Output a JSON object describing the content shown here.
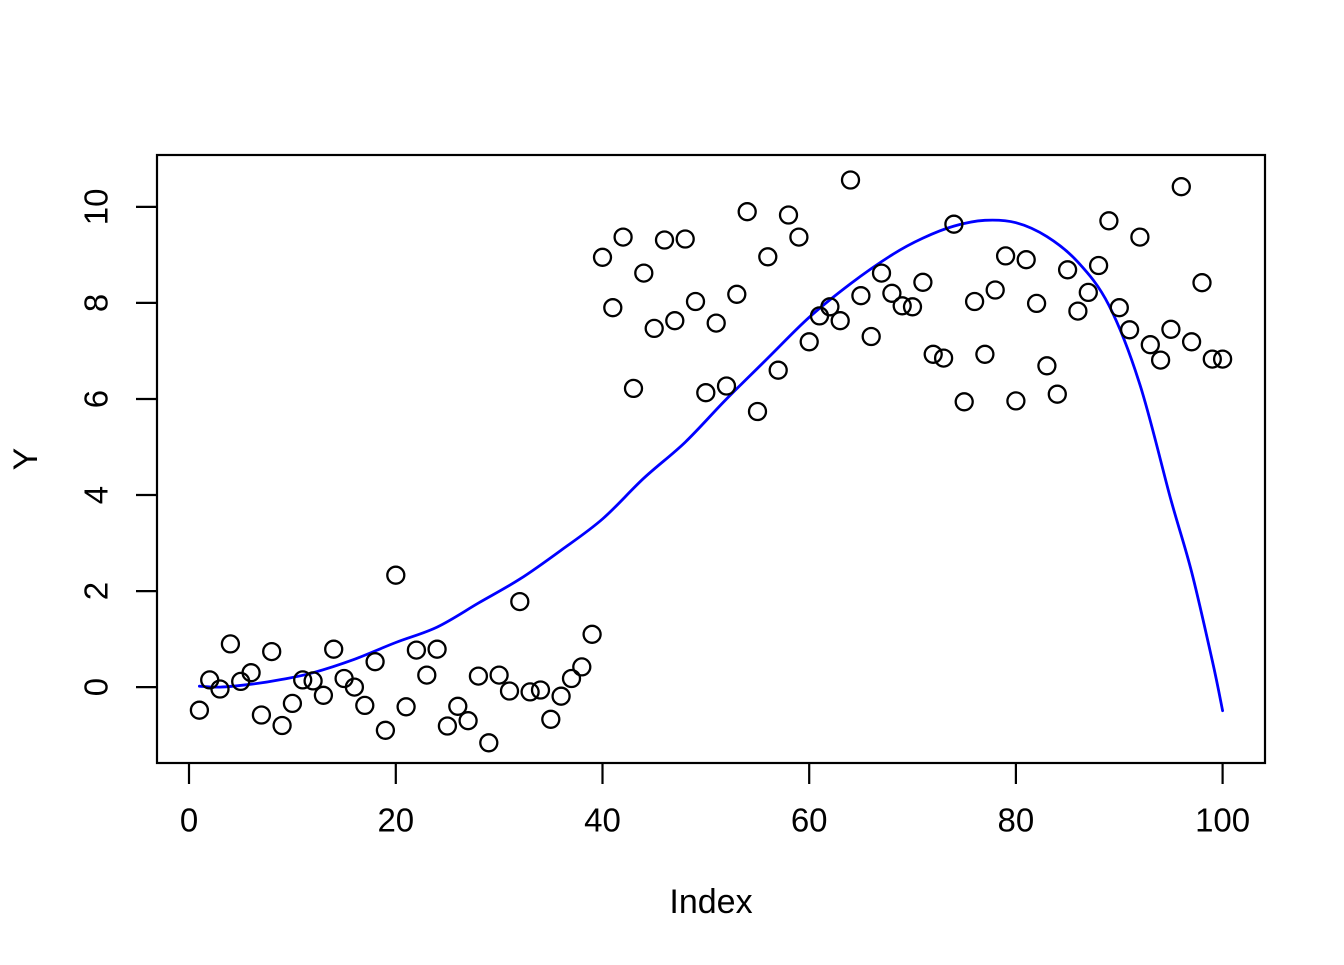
{
  "chart_data": {
    "type": "scatter",
    "title": "",
    "xlabel": "Index",
    "ylabel": "Y",
    "x_ticks": [
      0,
      20,
      40,
      60,
      80,
      100
    ],
    "y_ticks": [
      0,
      2,
      4,
      6,
      8,
      10
    ],
    "xlim": [
      -3.1,
      104.1
    ],
    "ylim": [
      -1.58,
      11.08
    ],
    "grid": false,
    "legend": null,
    "colors": {
      "points": "#000000",
      "curve": "#0000ff",
      "frame": "#000000"
    },
    "series": [
      {
        "name": "observations",
        "type": "scatter",
        "marker": "open-circle",
        "color": "#000000",
        "points": [
          [
            1,
            -0.48
          ],
          [
            2,
            0.15
          ],
          [
            3,
            -0.04
          ],
          [
            4,
            0.9
          ],
          [
            5,
            0.12
          ],
          [
            6,
            0.3
          ],
          [
            7,
            -0.58
          ],
          [
            8,
            0.74
          ],
          [
            9,
            -0.8
          ],
          [
            10,
            -0.34
          ],
          [
            11,
            0.15
          ],
          [
            12,
            0.13
          ],
          [
            13,
            -0.17
          ],
          [
            14,
            0.79
          ],
          [
            15,
            0.18
          ],
          [
            16,
            0.0
          ],
          [
            17,
            -0.38
          ],
          [
            18,
            0.53
          ],
          [
            19,
            -0.9
          ],
          [
            20,
            2.33
          ],
          [
            21,
            -0.41
          ],
          [
            22,
            0.77
          ],
          [
            23,
            0.25
          ],
          [
            24,
            0.79
          ],
          [
            25,
            -0.81
          ],
          [
            26,
            -0.4
          ],
          [
            27,
            -0.7
          ],
          [
            28,
            0.23
          ],
          [
            29,
            -1.16
          ],
          [
            30,
            0.25
          ],
          [
            31,
            -0.08
          ],
          [
            32,
            1.78
          ],
          [
            33,
            -0.1
          ],
          [
            34,
            -0.06
          ],
          [
            35,
            -0.67
          ],
          [
            36,
            -0.19
          ],
          [
            37,
            0.18
          ],
          [
            38,
            0.42
          ],
          [
            39,
            1.1
          ],
          [
            40,
            8.95
          ],
          [
            41,
            7.9
          ],
          [
            42,
            9.37
          ],
          [
            43,
            6.22
          ],
          [
            44,
            8.62
          ],
          [
            45,
            7.47
          ],
          [
            46,
            9.31
          ],
          [
            47,
            7.63
          ],
          [
            48,
            9.33
          ],
          [
            49,
            8.03
          ],
          [
            50,
            6.13
          ],
          [
            51,
            7.58
          ],
          [
            52,
            6.27
          ],
          [
            53,
            8.18
          ],
          [
            54,
            9.9
          ],
          [
            55,
            5.74
          ],
          [
            56,
            8.96
          ],
          [
            57,
            6.6
          ],
          [
            58,
            9.83
          ],
          [
            59,
            9.37
          ],
          [
            60,
            7.19
          ],
          [
            61,
            7.73
          ],
          [
            62,
            7.92
          ],
          [
            63,
            7.63
          ],
          [
            64,
            10.56
          ],
          [
            65,
            8.15
          ],
          [
            66,
            7.3
          ],
          [
            67,
            8.62
          ],
          [
            68,
            8.2
          ],
          [
            69,
            7.94
          ],
          [
            70,
            7.92
          ],
          [
            71,
            8.43
          ],
          [
            72,
            6.93
          ],
          [
            73,
            6.85
          ],
          [
            74,
            9.64
          ],
          [
            75,
            5.94
          ],
          [
            76,
            8.03
          ],
          [
            77,
            6.93
          ],
          [
            78,
            8.27
          ],
          [
            79,
            8.98
          ],
          [
            80,
            5.96
          ],
          [
            81,
            8.9
          ],
          [
            82,
            7.99
          ],
          [
            83,
            6.69
          ],
          [
            84,
            6.1
          ],
          [
            85,
            8.69
          ],
          [
            86,
            7.83
          ],
          [
            87,
            8.22
          ],
          [
            88,
            8.78
          ],
          [
            89,
            9.71
          ],
          [
            90,
            7.9
          ],
          [
            91,
            7.44
          ],
          [
            92,
            9.37
          ],
          [
            93,
            7.13
          ],
          [
            94,
            6.81
          ],
          [
            95,
            7.45
          ],
          [
            96,
            10.42
          ],
          [
            97,
            7.19
          ],
          [
            98,
            8.42
          ],
          [
            99,
            6.83
          ],
          [
            100,
            6.83
          ]
        ]
      },
      {
        "name": "fitted-curve",
        "type": "line",
        "color": "#0000ff",
        "points": [
          [
            1,
            0.02
          ],
          [
            3,
            0.0
          ],
          [
            6,
            0.06
          ],
          [
            9,
            0.16
          ],
          [
            12,
            0.3
          ],
          [
            16,
            0.58
          ],
          [
            20,
            0.93
          ],
          [
            24,
            1.25
          ],
          [
            28,
            1.75
          ],
          [
            32,
            2.25
          ],
          [
            36,
            2.85
          ],
          [
            40,
            3.5
          ],
          [
            44,
            4.35
          ],
          [
            48,
            5.1
          ],
          [
            52,
            6.0
          ],
          [
            56,
            6.85
          ],
          [
            60,
            7.7
          ],
          [
            64,
            8.4
          ],
          [
            68,
            9.0
          ],
          [
            71,
            9.35
          ],
          [
            74,
            9.6
          ],
          [
            77,
            9.72
          ],
          [
            80,
            9.67
          ],
          [
            83,
            9.38
          ],
          [
            86,
            8.85
          ],
          [
            89,
            7.95
          ],
          [
            92,
            6.3
          ],
          [
            95,
            3.9
          ],
          [
            97,
            2.4
          ],
          [
            99,
            0.55
          ],
          [
            100,
            -0.49
          ]
        ]
      }
    ]
  }
}
